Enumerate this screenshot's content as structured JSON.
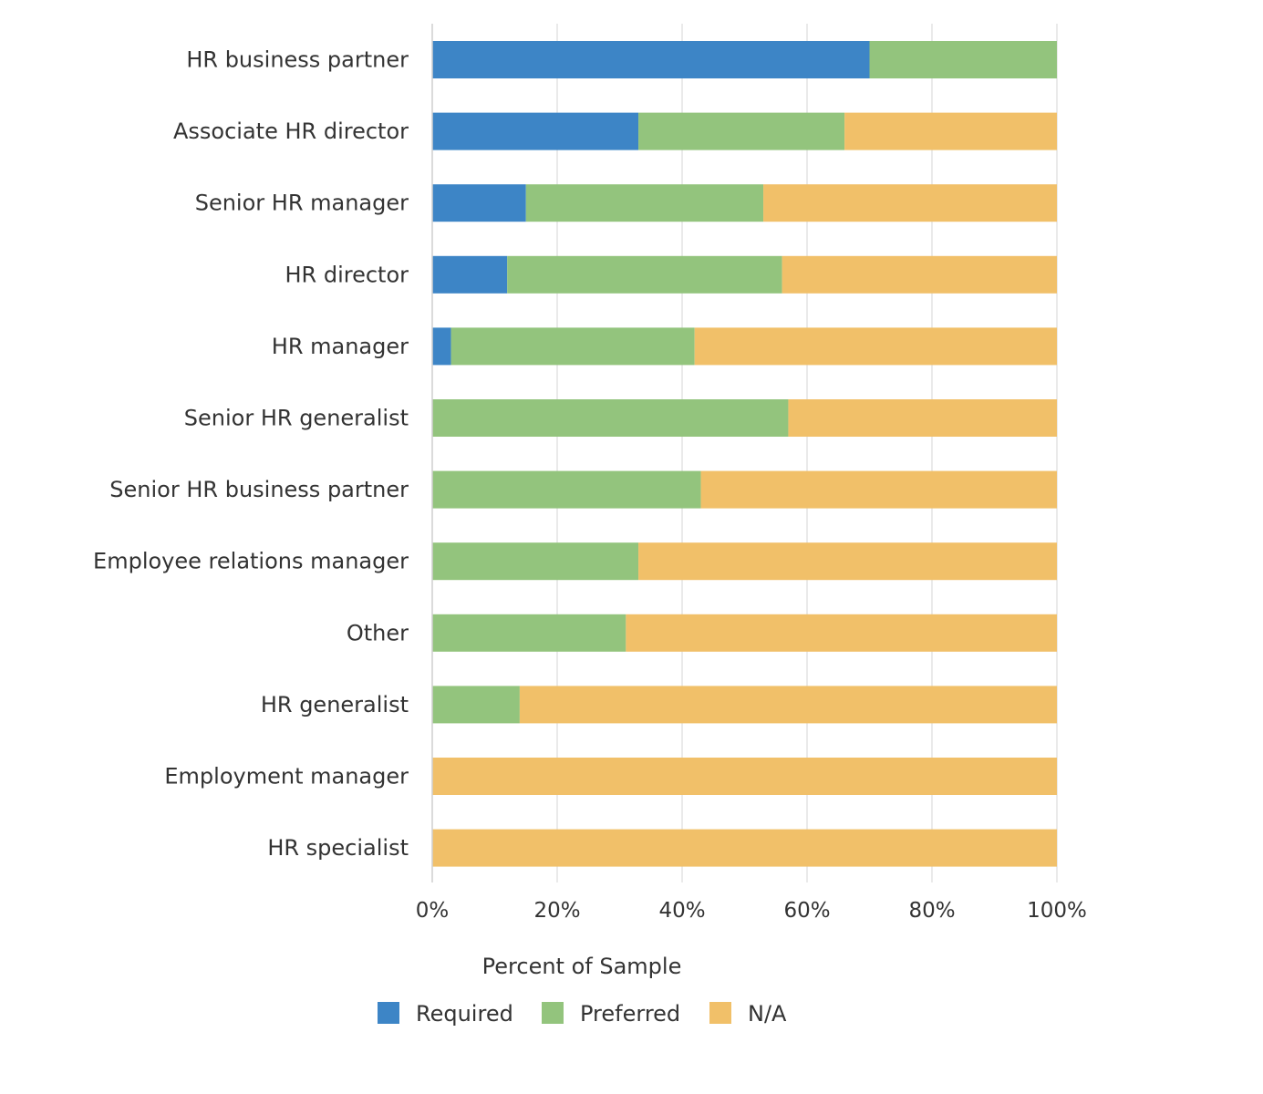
{
  "chart_data": {
    "type": "bar",
    "orientation": "horizontal",
    "stacked": true,
    "title": "",
    "xlabel": "Percent of Sample",
    "ylabel": "",
    "xlim": [
      0,
      100
    ],
    "x_ticks": [
      0,
      20,
      40,
      60,
      80,
      100
    ],
    "x_tick_labels": [
      "0%",
      "20%",
      "40%",
      "60%",
      "80%",
      "100%"
    ],
    "grid": true,
    "legend_position": "bottom",
    "categories": [
      "HR business partner",
      "Associate HR director",
      "Senior HR manager",
      "HR director",
      "HR manager",
      "Senior HR generalist",
      "Senior HR business partner",
      "Employee relations manager",
      "Other",
      "HR generalist",
      "Employment manager",
      "HR specialist"
    ],
    "series": [
      {
        "name": "Required",
        "color": "#3d85c6",
        "values": [
          70,
          33,
          15,
          12,
          3,
          0,
          0,
          0,
          0,
          0,
          0,
          0
        ]
      },
      {
        "name": "Preferred",
        "color": "#93c47d",
        "values": [
          30,
          33,
          38,
          44,
          39,
          57,
          43,
          33,
          31,
          14,
          0,
          0
        ]
      },
      {
        "name": "N/A",
        "color": "#f1c069",
        "values": [
          0,
          34,
          47,
          44,
          58,
          43,
          57,
          67,
          69,
          86,
          100,
          100
        ]
      }
    ]
  }
}
